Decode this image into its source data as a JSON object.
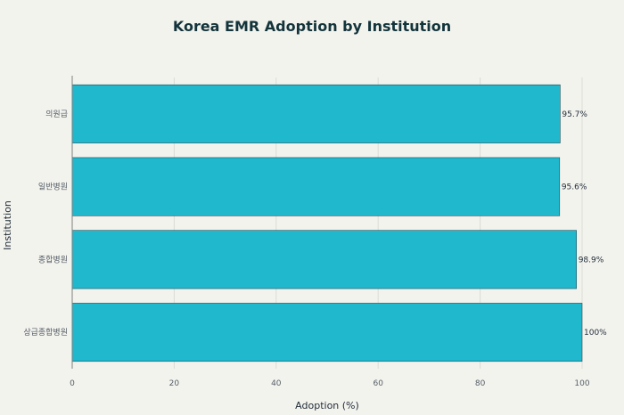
{
  "chart_data": {
    "type": "bar",
    "orientation": "horizontal",
    "title": "Korea EMR Adoption by Institution",
    "xlabel": "Adoption (%)",
    "ylabel": "Institution",
    "categories": [
      "의원급",
      "일반병원",
      "종합병원",
      "상급종합병원"
    ],
    "values": [
      95.7,
      95.6,
      98.9,
      100
    ],
    "value_labels": [
      "95.7%",
      "95.6%",
      "98.9%",
      "100%"
    ],
    "xlim": [
      0,
      100
    ],
    "xticks": [
      0,
      20,
      40,
      60,
      80,
      100
    ],
    "xtick_labels": [
      "0",
      "20",
      "40",
      "60",
      "80",
      "100"
    ],
    "grid": true,
    "colors": {
      "bar": "#1fb8cd",
      "bar_edge": "#13343b"
    }
  }
}
